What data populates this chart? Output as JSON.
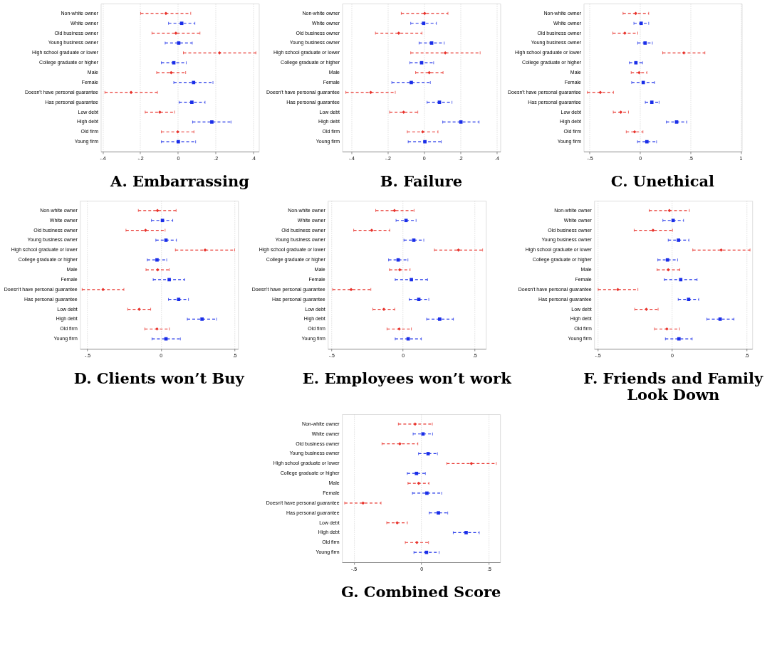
{
  "chart_data": [
    {
      "type": "scatter",
      "orientation": "horizontal",
      "title": "A. Embarrassing",
      "categories": [
        "Non-white owner",
        "White owner",
        "Old business owner",
        "Young business owner",
        "High school graduate or lower",
        "College graduate or higher",
        "Male",
        "Female",
        "Doesn't have personal guarantee",
        "Has personal guarantee",
        "Low debt",
        "High debt",
        "Old firm",
        "Young firm"
      ],
      "xlim": [
        -0.41,
        0.43
      ],
      "xticks": [
        {
          "value": -0.4,
          "label": "-.4"
        },
        {
          "value": -0.2,
          "label": "-.2"
        },
        0,
        {
          "value": 0.2,
          "label": ".2"
        },
        {
          "value": 0.4,
          "label": ".4"
        }
      ],
      "grid": "x",
      "line_style": "dashed",
      "series": [
        {
          "color": "#e8322b",
          "marker": "diamond",
          "values": [
            -0.064,
            null,
            -0.011,
            null,
            0.221,
            null,
            -0.036,
            null,
            -0.249,
            null,
            -0.096,
            null,
            -0.001,
            null
          ],
          "errors": [
            [
              -0.198,
              0.068
            ],
            null,
            [
              -0.138,
              0.117
            ],
            null,
            [
              0.029,
              0.414
            ],
            null,
            [
              -0.113,
              0.041
            ],
            null,
            [
              -0.388,
              -0.109
            ],
            null,
            [
              -0.174,
              -0.018
            ],
            null,
            [
              -0.088,
              0.085
            ],
            null
          ]
        },
        {
          "color": "#1a2ee8",
          "marker": "square",
          "values": [
            null,
            0.02,
            null,
            0.004,
            null,
            -0.022,
            null,
            0.083,
            null,
            0.074,
            null,
            0.18,
            null,
            0.002
          ],
          "errors": [
            null,
            [
              -0.05,
              0.09
            ],
            null,
            [
              -0.068,
              0.076
            ],
            null,
            [
              -0.088,
              0.044
            ],
            null,
            [
              -0.022,
              0.186
            ],
            null,
            [
              0.006,
              0.144
            ],
            null,
            [
              0.078,
              0.282
            ],
            null,
            [
              -0.088,
              0.094
            ]
          ]
        }
      ]
    },
    {
      "type": "scatter",
      "orientation": "horizontal",
      "title": "B. Failure",
      "categories": [
        "Non-white owner",
        "White owner",
        "Old business owner",
        "Young business owner",
        "High school graduate or lower",
        "College graduate or higher",
        "Male",
        "Female",
        "Doesn't have personal guarantee",
        "Has personal guarantee",
        "Low debt",
        "High debt",
        "Old firm",
        "Young firm"
      ],
      "xlim": [
        -0.45,
        0.42
      ],
      "xticks": [
        {
          "value": -0.4,
          "label": "-.4"
        },
        {
          "value": -0.2,
          "label": "-.2"
        },
        0,
        {
          "value": 0.2,
          "label": ".2"
        },
        {
          "value": 0.4,
          "label": ".4"
        }
      ],
      "grid": "x",
      "line_style": "dashed",
      "series": [
        {
          "color": "#e8322b",
          "marker": "diamond",
          "values": [
            0.004,
            null,
            -0.139,
            null,
            0.117,
            null,
            0.029,
            null,
            -0.293,
            null,
            -0.112,
            null,
            -0.007,
            null
          ],
          "errors": [
            [
              -0.125,
              0.132
            ],
            null,
            [
              -0.267,
              -0.011
            ],
            null,
            [
              -0.073,
              0.309
            ],
            null,
            [
              -0.046,
              0.105
            ],
            null,
            [
              -0.43,
              -0.158
            ],
            null,
            [
              -0.189,
              -0.034
            ],
            null,
            [
              -0.092,
              0.077
            ],
            null
          ]
        },
        {
          "color": "#1a2ee8",
          "marker": "square",
          "values": [
            null,
            -0.002,
            null,
            0.042,
            null,
            -0.013,
            null,
            -0.07,
            null,
            0.085,
            null,
            0.203,
            null,
            0.005
          ],
          "errors": [
            null,
            [
              -0.073,
              0.068
            ],
            null,
            [
              -0.027,
              0.111
            ],
            null,
            [
              -0.078,
              0.053
            ],
            null,
            [
              -0.177,
              0.035
            ],
            null,
            [
              0.017,
              0.154
            ],
            null,
            [
              0.103,
              0.303
            ],
            null,
            [
              -0.087,
              0.095
            ]
          ]
        }
      ]
    },
    {
      "type": "scatter",
      "orientation": "horizontal",
      "title": "C. Unethical",
      "categories": [
        "Non-white owner",
        "White owner",
        "Old business owner",
        "Young business owner",
        "High school graduate or lower",
        "College graduate or higher",
        "Male",
        "Female",
        "Doesn't have personal guarantee",
        "Has personal guarantee",
        "Low debt",
        "High debt",
        "Old firm",
        "Young firm"
      ],
      "xlim": [
        -0.56,
        1.01
      ],
      "xticks": [
        {
          "value": -0.5,
          "label": "-.5"
        },
        0,
        {
          "value": 0.5,
          "label": ".5"
        },
        1
      ],
      "grid": "x",
      "line_style": "dashed",
      "series": [
        {
          "color": "#e8322b",
          "marker": "diamond",
          "values": [
            -0.043,
            null,
            -0.151,
            null,
            0.435,
            null,
            -0.009,
            null,
            -0.394,
            null,
            -0.191,
            null,
            -0.054,
            null
          ],
          "errors": [
            [
              -0.169,
              0.086
            ],
            null,
            [
              -0.27,
              -0.023
            ],
            null,
            [
              0.225,
              0.644
            ],
            null,
            [
              -0.088,
              0.068
            ],
            null,
            [
              -0.523,
              -0.264
            ],
            null,
            [
              -0.266,
              -0.115
            ],
            null,
            [
              -0.137,
              0.029
            ],
            null
          ]
        },
        {
          "color": "#1a2ee8",
          "marker": "square",
          "values": [
            null,
            0.011,
            null,
            0.05,
            null,
            -0.041,
            null,
            0.032,
            null,
            0.117,
            null,
            0.363,
            null,
            0.068
          ],
          "errors": [
            null,
            [
              -0.061,
              0.086
            ],
            null,
            [
              -0.023,
              0.122
            ],
            null,
            [
              -0.106,
              0.025
            ],
            null,
            [
              -0.083,
              0.144
            ],
            null,
            [
              0.052,
              0.189
            ],
            null,
            [
              0.261,
              0.464
            ],
            null,
            [
              -0.025,
              0.164
            ]
          ]
        }
      ]
    },
    {
      "type": "scatter",
      "orientation": "horizontal",
      "title": "D. Clients won’t Buy",
      "categories": [
        "Non-white owner",
        "White owner",
        "Old business owner",
        "Young business owner",
        "High school graduate or lower",
        "College graduate or higher",
        "Male",
        "Female",
        "Doesn't have personal guarantee",
        "Has personal guarantee",
        "Low debt",
        "High debt",
        "Old firm",
        "Young firm"
      ],
      "xlim": [
        -0.55,
        0.525
      ],
      "xticks": [
        {
          "value": -0.5,
          "label": "-.5"
        },
        0,
        {
          "value": 0.5,
          "label": ".5"
        }
      ],
      "grid": "x",
      "line_style": "dashed",
      "series": [
        {
          "color": "#e8322b",
          "marker": "diamond",
          "values": [
            -0.023,
            null,
            -0.104,
            null,
            0.301,
            null,
            -0.021,
            null,
            -0.393,
            null,
            -0.147,
            null,
            -0.026,
            null
          ],
          "errors": [
            [
              -0.153,
              0.104
            ],
            null,
            [
              -0.237,
              0.029
            ],
            null,
            [
              0.099,
              0.502
            ],
            null,
            [
              -0.101,
              0.057
            ],
            null,
            [
              -0.535,
              -0.251
            ],
            null,
            [
              -0.225,
              -0.069
            ],
            null,
            [
              -0.109,
              0.058
            ],
            null
          ]
        },
        {
          "color": "#1a2ee8",
          "marker": "square",
          "values": [
            null,
            0.011,
            null,
            0.035,
            null,
            -0.026,
            null,
            0.057,
            null,
            0.121,
            null,
            0.28,
            null,
            0.035
          ],
          "errors": [
            null,
            [
              -0.064,
              0.081
            ],
            null,
            [
              -0.034,
              0.106
            ],
            null,
            [
              -0.092,
              0.04
            ],
            null,
            [
              -0.052,
              0.162
            ],
            null,
            [
              0.052,
              0.188
            ],
            null,
            [
              0.18,
              0.379
            ],
            null,
            [
              -0.06,
              0.133
            ]
          ]
        }
      ]
    },
    {
      "type": "scatter",
      "orientation": "horizontal",
      "title": "E. Employees won’t work",
      "categories": [
        "Non-white owner",
        "White owner",
        "Old business owner",
        "Young business owner",
        "High school graduate or lower",
        "College graduate or higher",
        "Male",
        "Female",
        "Doesn't have personal guarantee",
        "Has personal guarantee",
        "Low debt",
        "High debt",
        "Old firm",
        "Young firm"
      ],
      "xlim": [
        -0.525,
        0.58
      ],
      "xticks": [
        {
          "value": -0.5,
          "label": "-.5"
        },
        0,
        {
          "value": 0.5,
          "label": ".5"
        }
      ],
      "grid": "x",
      "line_style": "dashed",
      "series": [
        {
          "color": "#e8322b",
          "marker": "diamond",
          "values": [
            -0.059,
            null,
            -0.218,
            null,
            0.388,
            null,
            -0.022,
            null,
            -0.362,
            null,
            -0.133,
            null,
            -0.026,
            null
          ],
          "errors": [
            [
              -0.19,
              0.078
            ],
            null,
            [
              -0.344,
              -0.092
            ],
            null,
            [
              0.22,
              0.557
            ],
            null,
            [
              -0.094,
              0.05
            ],
            null,
            [
              -0.491,
              -0.224
            ],
            null,
            [
              -0.21,
              -0.057
            ],
            null,
            [
              -0.111,
              0.059
            ],
            null
          ]
        },
        {
          "color": "#1a2ee8",
          "marker": "square",
          "values": [
            null,
            0.022,
            null,
            0.076,
            null,
            -0.033,
            null,
            0.059,
            null,
            0.111,
            null,
            0.257,
            null,
            0.037
          ],
          "errors": [
            null,
            [
              -0.048,
              0.092
            ],
            null,
            [
              0.007,
              0.146
            ],
            null,
            [
              -0.1,
              0.035
            ],
            null,
            [
              -0.054,
              0.172
            ],
            null,
            [
              0.044,
              0.181
            ],
            null,
            [
              0.166,
              0.353
            ],
            null,
            [
              -0.054,
              0.129
            ]
          ]
        }
      ]
    },
    {
      "type": "scatter",
      "orientation": "horizontal",
      "title": "F. Friends and Family Look Down",
      "categories": [
        "Non-white owner",
        "White owner",
        "Old business owner",
        "Young business owner",
        "High school graduate or lower",
        "College graduate or higher",
        "Male",
        "Female",
        "Doesn't have personal guarantee",
        "Has personal guarantee",
        "Low debt",
        "High debt",
        "Old firm",
        "Young firm"
      ],
      "xlim": [
        -0.523,
        0.54
      ],
      "xticks": [
        {
          "value": -0.5,
          "label": "-.5"
        },
        0,
        {
          "value": 0.5,
          "label": ".5"
        }
      ],
      "grid": "x",
      "line_style": "dashed",
      "series": [
        {
          "color": "#e8322b",
          "marker": "diamond",
          "values": [
            -0.017,
            null,
            -0.127,
            null,
            0.331,
            null,
            -0.025,
            null,
            -0.364,
            null,
            -0.172,
            null,
            -0.034,
            null
          ],
          "errors": [
            [
              -0.153,
              0.117
            ],
            null,
            [
              -0.254,
              0.004
            ],
            null,
            [
              0.14,
              0.525
            ],
            null,
            [
              -0.1,
              0.053
            ],
            null,
            [
              -0.496,
              -0.229
            ],
            null,
            [
              -0.25,
              -0.093
            ],
            null,
            [
              -0.117,
              0.051
            ],
            null
          ]
        },
        {
          "color": "#1a2ee8",
          "marker": "square",
          "values": [
            null,
            0.008,
            null,
            0.044,
            null,
            -0.03,
            null,
            0.059,
            null,
            0.112,
            null,
            0.324,
            null,
            0.047
          ],
          "errors": [
            null,
            [
              -0.061,
              0.078
            ],
            null,
            [
              -0.025,
              0.114
            ],
            null,
            [
              -0.095,
              0.038
            ],
            null,
            [
              -0.051,
              0.169
            ],
            null,
            [
              0.042,
              0.18
            ],
            null,
            [
              0.235,
              0.417
            ],
            null,
            [
              -0.044,
              0.136
            ]
          ]
        }
      ]
    },
    {
      "type": "scatter",
      "orientation": "horizontal",
      "title": "G. Combined Score",
      "categories": [
        "Non-white owner",
        "White owner",
        "Old business owner",
        "Young business owner",
        "High school graduate or lower",
        "College graduate or higher",
        "Male",
        "Female",
        "Doesn't have personal guarantee",
        "Has personal guarantee",
        "Low debt",
        "High debt",
        "Old firm",
        "Young firm"
      ],
      "xlim": [
        -0.587,
        0.582
      ],
      "xticks": [
        {
          "value": -0.5,
          "label": "-.5"
        },
        0,
        {
          "value": 0.5,
          "label": ".5"
        }
      ],
      "grid": "x",
      "line_style": "dashed",
      "series": [
        {
          "color": "#e8322b",
          "marker": "diamond",
          "values": [
            -0.046,
            null,
            -0.159,
            null,
            0.37,
            null,
            -0.02,
            null,
            -0.431,
            null,
            -0.179,
            null,
            -0.033,
            null
          ],
          "errors": [
            [
              -0.17,
              0.081
            ],
            null,
            [
              -0.291,
              -0.026
            ],
            null,
            [
              0.188,
              0.554
            ],
            null,
            [
              -0.099,
              0.056
            ],
            null,
            [
              -0.567,
              -0.298
            ],
            null,
            [
              -0.256,
              -0.104
            ],
            null,
            [
              -0.119,
              0.053
            ],
            null
          ]
        },
        {
          "color": "#1a2ee8",
          "marker": "square",
          "values": [
            null,
            0.012,
            null,
            0.05,
            null,
            -0.036,
            null,
            0.041,
            null,
            0.126,
            null,
            0.331,
            null,
            0.038
          ],
          "errors": [
            null,
            [
              -0.061,
              0.083
            ],
            null,
            [
              -0.021,
              0.119
            ],
            null,
            [
              -0.104,
              0.03
            ],
            null,
            [
              -0.066,
              0.15
            ],
            null,
            [
              0.058,
              0.195
            ],
            null,
            [
              0.236,
              0.428
            ],
            null,
            [
              -0.055,
              0.131
            ]
          ]
        }
      ]
    }
  ]
}
